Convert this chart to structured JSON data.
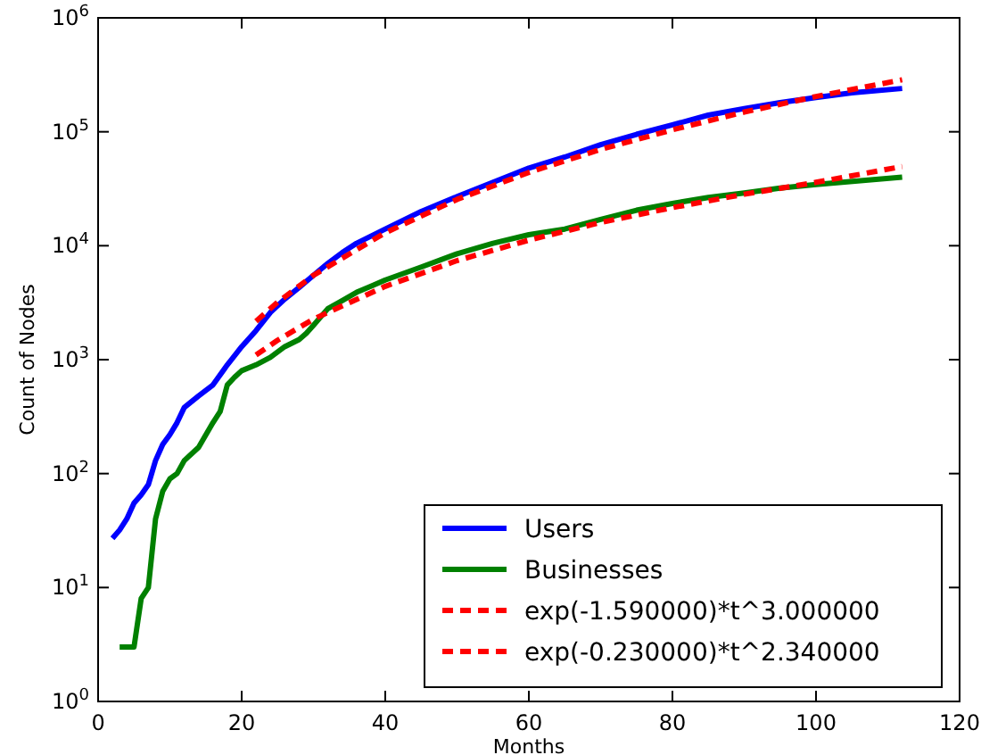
{
  "chart_data": {
    "type": "line",
    "xlabel": "Months",
    "ylabel": "Count of Nodes",
    "log": "y",
    "grid": false,
    "legend": "bottom right",
    "line_style": "solid",
    "marker": "none",
    "xlim": [
      0,
      120
    ],
    "xticks": [
      0,
      20,
      40,
      60,
      80,
      100,
      120
    ],
    "ylim": [
      1,
      1000000
    ],
    "yticks": [
      {
        "value": 1,
        "label": "10$^{0}$"
      },
      {
        "value": 10,
        "label": "10$^{1}$"
      },
      {
        "value": 100,
        "label": "10$^{2}$"
      },
      {
        "value": 1000,
        "label": "10$^{3}$"
      },
      {
        "value": 10000,
        "label": "10$^{4}$"
      },
      {
        "value": 100000,
        "label": "10$^{5}$"
      },
      {
        "value": 1000000,
        "label": "10$^{6}$"
      }
    ],
    "series": [
      {
        "name": "Users",
        "color": "#0000ff",
        "x": [
          2,
          3,
          4,
          5,
          6,
          7,
          8,
          9,
          10,
          11,
          12,
          14,
          16,
          18,
          20,
          22,
          24,
          26,
          28,
          30,
          32,
          34,
          36,
          40,
          45,
          50,
          55,
          60,
          65,
          70,
          75,
          80,
          85,
          90,
          95,
          100,
          105,
          112
        ],
        "values": [
          27,
          32,
          40,
          55,
          65,
          80,
          130,
          180,
          220,
          280,
          380,
          480,
          600,
          900,
          1300,
          1800,
          2600,
          3400,
          4300,
          5500,
          7000,
          8700,
          10500,
          14000,
          20000,
          27000,
          36000,
          48000,
          60000,
          77000,
          95000,
          115000,
          140000,
          160000,
          180000,
          200000,
          220000,
          240000
        ]
      },
      {
        "name": "Businesses",
        "color": "#008000",
        "x": [
          3,
          4,
          5,
          6,
          7,
          8,
          9,
          10,
          11,
          12,
          14,
          16,
          17,
          18,
          19,
          20,
          22,
          24,
          26,
          28,
          29,
          30,
          32,
          34,
          36,
          38,
          40,
          45,
          50,
          55,
          60,
          65,
          70,
          75,
          80,
          85,
          90,
          95,
          100,
          112
        ],
        "values": [
          3,
          3,
          3,
          8,
          10,
          40,
          70,
          90,
          100,
          130,
          170,
          280,
          350,
          600,
          700,
          800,
          900,
          1050,
          1300,
          1500,
          1700,
          2000,
          2800,
          3300,
          3900,
          4400,
          5000,
          6500,
          8500,
          10500,
          12500,
          14000,
          17000,
          20500,
          23500,
          26500,
          29000,
          32000,
          34500,
          40000
        ]
      },
      {
        "name": "exp(-1.590000)*t^3.000000",
        "color": "#ff0000",
        "line_style": "dashed",
        "x": [
          22,
          25,
          30,
          40,
          50,
          60,
          70,
          80,
          90,
          100,
          112
        ],
        "values": [
          2170,
          3190,
          5500,
          13000,
          25500,
          44000,
          70000,
          104000,
          149000,
          204000,
          286000
        ]
      },
      {
        "name": "exp(-0.230000)*t^2.340000",
        "color": "#ff0000",
        "line_style": "dashed",
        "x": [
          22,
          25,
          30,
          40,
          50,
          60,
          70,
          80,
          90,
          100,
          112
        ],
        "values": [
          1100,
          1480,
          2270,
          4400,
          7400,
          11200,
          16000,
          21600,
          28300,
          36000,
          49500
        ]
      }
    ]
  }
}
